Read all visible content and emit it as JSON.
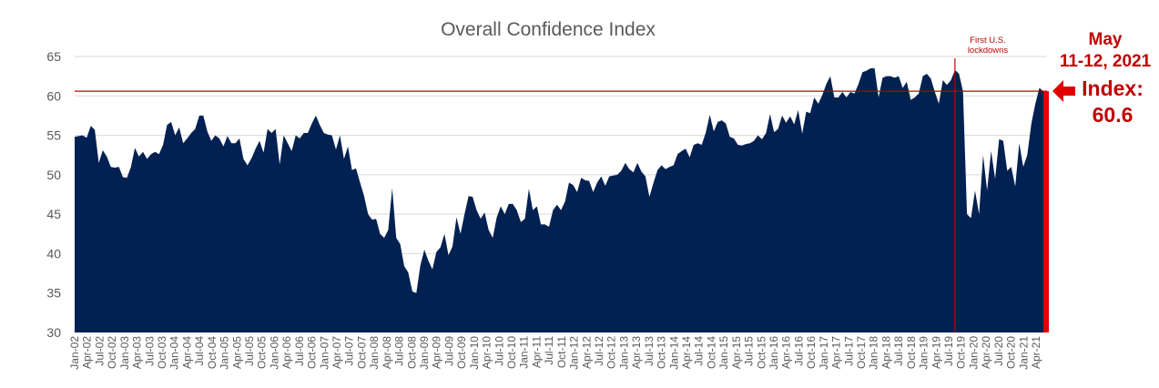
{
  "chart_data": {
    "type": "area",
    "title": "Overall Confidence Index",
    "xlabel": "",
    "ylabel": "",
    "ylim": [
      30,
      65
    ],
    "yticks": [
      "30",
      "35",
      "40",
      "45",
      "50",
      "55",
      "60",
      "65"
    ],
    "grid": true,
    "colors": {
      "area": "#002152",
      "line": "#c00000",
      "grid": "#d9d9d9",
      "text": "#595959"
    },
    "x_labels": [
      "Jan-02",
      "Apr-02",
      "Jul-02",
      "Oct-02",
      "Jan-03",
      "Apr-03",
      "Jul-03",
      "Oct-03",
      "Jan-04",
      "Apr-04",
      "Jul-04",
      "Oct-04",
      "Jan-05",
      "Apr-05",
      "Jul-05",
      "Oct-05",
      "Jan-06",
      "Apr-06",
      "Jul-06",
      "Oct-06",
      "Jan-07",
      "Apr-07",
      "Jul-07",
      "Oct-07",
      "Jan-08",
      "Apr-08",
      "Jul-08",
      "Oct-08",
      "Jan-09",
      "Apr-09",
      "Jul-09",
      "Oct-09",
      "Jan-10",
      "Apr-10",
      "Jul-10",
      "Oct-10",
      "Jan-11",
      "Apr-11",
      "Jul-11",
      "Oct-11",
      "Jan-12",
      "Apr-12",
      "Jul-12",
      "Oct-12",
      "Jan-13",
      "Apr-13",
      "Jul-13",
      "Oct-13",
      "Jan-14",
      "Apr-14",
      "Jul-14",
      "Oct-14",
      "Jan-15",
      "Apr-15",
      "Jul-15",
      "Oct-15",
      "Jan-16",
      "Apr-16",
      "Jul-16",
      "Oct-16",
      "Jan-17",
      "Apr-17",
      "Jul-17",
      "Oct-17",
      "Jan-18",
      "Apr-18",
      "Jul-18",
      "Oct-18",
      "Jan-19",
      "Apr-19",
      "Jul-19",
      "Oct-19",
      "Jan-20",
      "Apr-20",
      "Jul-20",
      "Oct-20",
      "Jan-21",
      "Apr-21"
    ],
    "series": [
      {
        "name": "Overall Confidence Index",
        "values": [
          54.8,
          54.9,
          55.0,
          54.7,
          56.2,
          55.7,
          51.5,
          53.1,
          52.3,
          51.0,
          50.9,
          51.0,
          49.7,
          49.6,
          51.0,
          53.4,
          52.3,
          52.9,
          52.0,
          52.6,
          52.9,
          52.6,
          53.8,
          56.3,
          56.7,
          55.0,
          56.0,
          54.0,
          54.6,
          55.3,
          55.8,
          57.5,
          57.5,
          55.5,
          54.3,
          55.0,
          54.6,
          53.6,
          54.9,
          54.0,
          54.0,
          54.6,
          52.0,
          51.2,
          52.1,
          53.3,
          54.3,
          52.8,
          55.8,
          55.3,
          55.8,
          51.3,
          55.0,
          54.0,
          53.0,
          55.0,
          54.6,
          55.3,
          55.3,
          56.5,
          57.5,
          56.3,
          55.3,
          55.1,
          55.0,
          53.2,
          55.0,
          52.0,
          53.6,
          50.6,
          50.8,
          49.0,
          47.3,
          45.0,
          44.3,
          44.4,
          42.5,
          42.0,
          43.0,
          48.3,
          42.0,
          41.2,
          38.4,
          37.6,
          35.2,
          35.0,
          38.5,
          40.5,
          39.1,
          38.0,
          40.2,
          40.8,
          42.5,
          39.8,
          40.9,
          44.6,
          42.5,
          45.0,
          47.3,
          47.2,
          45.5,
          44.4,
          45.2,
          43.0,
          42.0,
          44.6,
          46.0,
          45.0,
          46.3,
          46.3,
          45.5,
          44.0,
          44.4,
          48.2,
          45.5,
          46.0,
          43.7,
          43.7,
          43.4,
          45.5,
          46.2,
          45.5,
          46.6,
          49.0,
          48.7,
          47.8,
          49.6,
          49.3,
          49.2,
          47.8,
          49.0,
          49.8,
          48.6,
          49.8,
          49.9,
          50.0,
          50.5,
          51.5,
          50.7,
          50.3,
          51.5,
          50.4,
          49.8,
          47.2,
          49.0,
          50.6,
          51.2,
          50.7,
          51.0,
          51.2,
          52.6,
          53.0,
          53.3,
          52.2,
          53.8,
          54.0,
          53.8,
          55.3,
          57.6,
          55.5,
          56.7,
          56.9,
          56.5,
          54.8,
          54.6,
          53.8,
          53.7,
          53.9,
          54.0,
          54.3,
          55.0,
          54.5,
          55.3,
          57.7,
          55.4,
          55.8,
          57.5,
          56.6,
          57.4,
          56.4,
          58.2,
          55.2,
          58.0,
          57.8,
          59.8,
          59.0,
          60.1,
          61.5,
          62.5,
          59.8,
          59.8,
          60.5,
          59.8,
          60.5,
          60.3,
          61.5,
          63.0,
          63.2,
          63.5,
          63.5,
          59.8,
          62.3,
          62.5,
          62.5,
          62.3,
          62.5,
          61.0,
          61.8,
          59.5,
          59.8,
          60.3,
          62.5,
          62.8,
          62.2,
          60.5,
          59.0,
          62.0,
          61.4,
          62.0,
          63.3,
          62.8,
          60.6,
          45.0,
          44.5,
          48.0,
          45.0,
          52.5,
          48.0,
          53.0,
          49.5,
          54.5,
          54.3,
          50.5,
          51.0,
          48.5,
          54.0,
          51.0,
          52.5,
          56.5,
          59.0,
          61.0,
          60.6
        ]
      }
    ],
    "reference_line": {
      "value": 60.6,
      "label": "Index: 60.6"
    },
    "annotations": {
      "lockdown_label_line1": "First U.S.",
      "lockdown_label_line2": "lockdowns",
      "date_line1": "May",
      "date_line2": "11-12, 2021",
      "index_line1": "Index:",
      "index_line2": "60.6"
    }
  }
}
